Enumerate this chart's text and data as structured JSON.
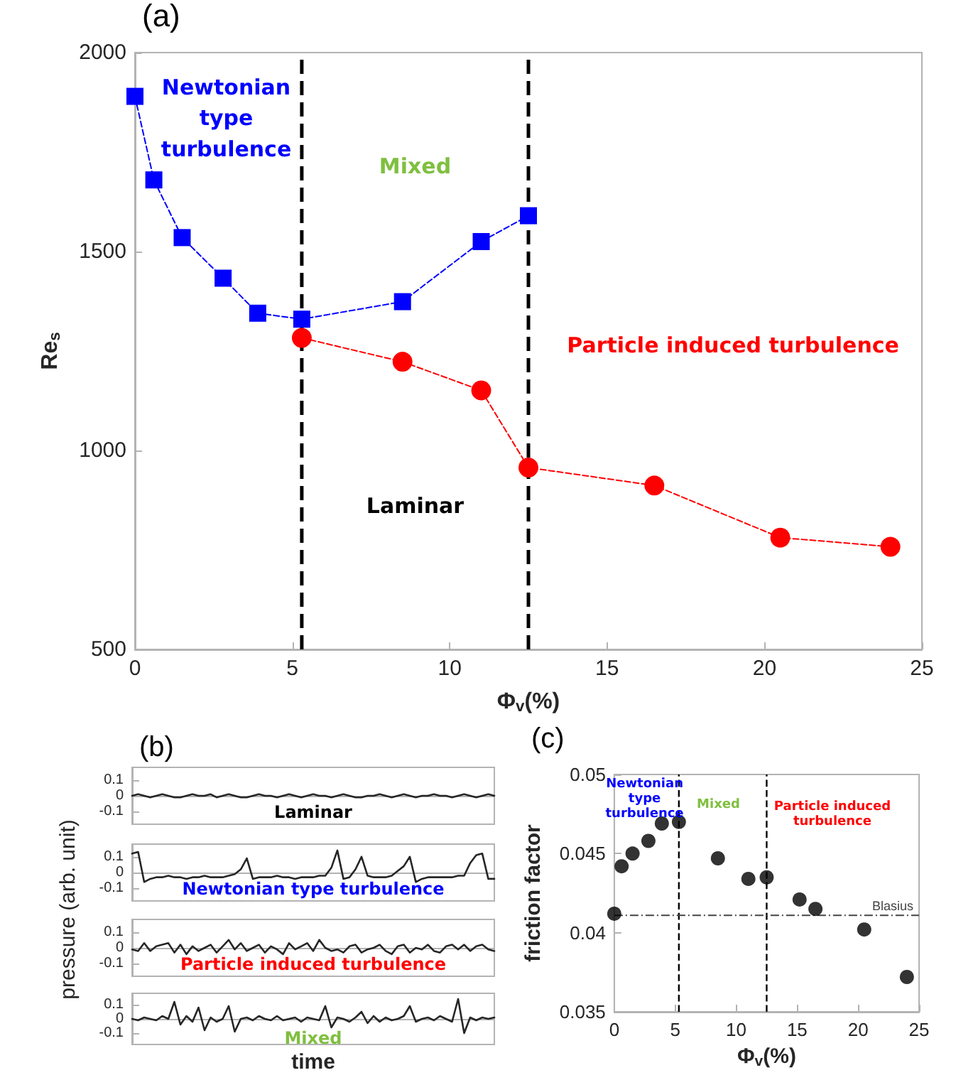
{
  "chart_data": [
    {
      "type": "line",
      "title": "(a)",
      "xlabel": "Φ$_{v}$(%)",
      "ylabel": "Re$_{s}$",
      "xlim": [
        0,
        25
      ],
      "xticks": [
        0,
        5,
        10,
        15,
        20,
        25
      ],
      "ylim": [
        500,
        2000
      ],
      "yticks": [
        500,
        1000,
        1500,
        2000
      ],
      "line_style": "dashed",
      "series": [
        {
          "color": "#0000ff",
          "marker": "square",
          "x": [
            0,
            0.6,
            1.5,
            2.8,
            3.9,
            5.3,
            8.5,
            11,
            12.5
          ],
          "values": [
            1890,
            1680,
            1535,
            1433,
            1345,
            1330,
            1374,
            1525,
            1590
          ]
        },
        {
          "color": "#ff0000",
          "marker": "circle",
          "x": [
            5.3,
            8.5,
            11,
            12.5,
            16.5,
            20.5,
            24
          ],
          "values": [
            1283,
            1223,
            1151,
            957,
            912,
            781,
            758
          ]
        }
      ],
      "ref_lines": [
        {
          "axis": "x",
          "value": 5.3,
          "color": "#000000",
          "line_style": "dashed"
        },
        {
          "axis": "x",
          "value": 12.5,
          "color": "#000000",
          "line_style": "dashed"
        }
      ],
      "annotations": [
        "Newtonian\ntype\nturbulence",
        "Mixed",
        "Particle induced turbulence",
        "Laminar"
      ]
    },
    {
      "type": "line",
      "title": "(b)",
      "ylabel": "pressure (arb. unit)",
      "color": "#262626",
      "tick_labels": "y",
      "ylim": [
        -0.18,
        0.18
      ],
      "yticks": [
        -0.1,
        0,
        0.1
      ],
      "categories": [
        null,
        null,
        null,
        null,
        null,
        null,
        null,
        null,
        null,
        null,
        null,
        null,
        null,
        null,
        null,
        null,
        null,
        null,
        null,
        null,
        null,
        null,
        null,
        null,
        null,
        null,
        null,
        null,
        null,
        null,
        null,
        null,
        null,
        null,
        null,
        null,
        null,
        null,
        null,
        null,
        null,
        null,
        null,
        null,
        null,
        null,
        null,
        null,
        null,
        null,
        null,
        null,
        null,
        null,
        null,
        null,
        null,
        null,
        null,
        null,
        null
      ],
      "values": [
        0,
        0.01,
        0,
        -0.01,
        0,
        0.01,
        0,
        -0.01,
        -0.01,
        0,
        0.01,
        0,
        0,
        0.01,
        -0.01,
        0,
        0.01,
        0,
        -0.01,
        -0.01,
        0,
        0.01,
        0,
        0,
        -0.01,
        0,
        0.01,
        0,
        -0.01,
        0,
        0.01,
        0,
        0,
        -0.01,
        0,
        0.01,
        0,
        -0.01,
        -0.01,
        0,
        0,
        0.01,
        0,
        -0.01,
        0,
        0.01,
        0,
        -0.01,
        0,
        0,
        0.01,
        0,
        0,
        -0.01,
        0,
        0.01,
        0,
        -0.01,
        0,
        0.01,
        0
      ],
      "annotations": [
        "Laminar"
      ]
    },
    {
      "type": "line",
      "color": "#262626",
      "tick_labels": "y",
      "ylim": [
        -0.18,
        0.18
      ],
      "yticks": [
        -0.1,
        0,
        0.1
      ],
      "categories": [
        null,
        null,
        null,
        null,
        null,
        null,
        null,
        null,
        null,
        null,
        null,
        null,
        null,
        null,
        null,
        null,
        null,
        null,
        null,
        null,
        null,
        null,
        null,
        null,
        null,
        null,
        null,
        null,
        null,
        null,
        null,
        null,
        null,
        null,
        null,
        null,
        null,
        null,
        null,
        null,
        null,
        null,
        null,
        null,
        null,
        null,
        null,
        null,
        null,
        null,
        null,
        null,
        null,
        null,
        null,
        null,
        null,
        null,
        null,
        null,
        null
      ],
      "values": [
        0.12,
        0.13,
        -0.06,
        -0.04,
        -0.03,
        -0.03,
        -0.02,
        -0.03,
        -0.03,
        -0.04,
        -0.03,
        -0.03,
        -0.02,
        -0.03,
        -0.03,
        -0.03,
        -0.02,
        -0.01,
        0.02,
        0.09,
        -0.04,
        -0.03,
        -0.03,
        -0.03,
        -0.02,
        -0.03,
        -0.03,
        -0.04,
        -0.03,
        -0.03,
        -0.03,
        -0.02,
        -0.02,
        0.03,
        0.14,
        -0.04,
        -0.03,
        0.02,
        0.1,
        -0.02,
        -0.03,
        -0.03,
        -0.03,
        -0.02,
        0.01,
        0.04,
        0.1,
        -0.06,
        -0.04,
        -0.03,
        -0.03,
        -0.03,
        -0.03,
        -0.03,
        -0.02,
        -0.02,
        0.06,
        0.11,
        0.12,
        -0.04,
        -0.04
      ],
      "annotations": [
        "Newtonian type turbulence"
      ]
    },
    {
      "type": "line",
      "color": "#262626",
      "tick_labels": "y",
      "ylim": [
        -0.18,
        0.18
      ],
      "yticks": [
        -0.1,
        0,
        0.1
      ],
      "categories": [
        null,
        null,
        null,
        null,
        null,
        null,
        null,
        null,
        null,
        null,
        null,
        null,
        null,
        null,
        null,
        null,
        null,
        null,
        null,
        null,
        null,
        null,
        null,
        null,
        null,
        null,
        null,
        null,
        null,
        null,
        null,
        null,
        null,
        null,
        null,
        null,
        null,
        null,
        null,
        null,
        null,
        null,
        null,
        null,
        null,
        null,
        null,
        null,
        null,
        null,
        null,
        null,
        null,
        null,
        null,
        null,
        null,
        null,
        null,
        null,
        null
      ],
      "values": [
        -0.01,
        -0.02,
        0.03,
        -0.02,
        0.01,
        0.02,
        0.03,
        -0.03,
        0.02,
        -0.04,
        0.01,
        -0.02,
        0,
        0.02,
        -0.03,
        0.01,
        0.05,
        -0.01,
        0.03,
        -0.02,
        0,
        0.02,
        -0.03,
        0.01,
        -0.01,
        -0.04,
        0.03,
        -0.01,
        0.01,
        0.03,
        -0.02,
        0.05,
        0,
        -0.02,
        -0.01,
        -0.03,
        0.01,
        0.02,
        -0.03,
        -0.01,
        0,
        0.02,
        -0.02,
        -0.04,
        0.01,
        0.02,
        -0.03,
        0,
        -0.01,
        0.02,
        -0.02,
        -0.03,
        0.01,
        0.02,
        -0.01,
        0.02,
        -0.02,
        0.01,
        0.02,
        -0.01,
        -0.02
      ],
      "annotations": [
        "Particle induced turbulence"
      ]
    },
    {
      "type": "line",
      "xlabel": "time",
      "color": "#262626",
      "tick_labels": "y",
      "ylim": [
        -0.18,
        0.18
      ],
      "yticks": [
        -0.1,
        0,
        0.1
      ],
      "categories": [
        null,
        null,
        null,
        null,
        null,
        null,
        null,
        null,
        null,
        null,
        null,
        null,
        null,
        null,
        null,
        null,
        null,
        null,
        null,
        null,
        null,
        null,
        null,
        null,
        null,
        null,
        null,
        null,
        null,
        null,
        null,
        null,
        null,
        null,
        null,
        null,
        null,
        null,
        null,
        null,
        null,
        null,
        null,
        null,
        null,
        null,
        null,
        null,
        null,
        null,
        null,
        null,
        null,
        null,
        null,
        null,
        null,
        null,
        null,
        null,
        null
      ],
      "values": [
        0,
        -0.01,
        0.01,
        0,
        -0.01,
        0.02,
        0,
        0.12,
        -0.04,
        0.02,
        -0.02,
        0.08,
        -0.08,
        0.01,
        -0.02,
        0,
        0.09,
        -0.09,
        0,
        0.01,
        -0.01,
        0.02,
        0,
        -0.01,
        0.02,
        -0.01,
        0,
        0.01,
        -0.02,
        0.01,
        0,
        -0.01,
        0.09,
        -0.06,
        0.01,
        0,
        -0.02,
        0.01,
        0.05,
        -0.03,
        0.02,
        -0.02,
        0.01,
        -0.01,
        0,
        0.02,
        0.09,
        -0.02,
        0,
        0.01,
        -0.01,
        0.02,
        0,
        -0.02,
        0.14,
        -0.1,
        0.01,
        -0.01,
        0.01,
        0,
        0.01
      ],
      "annotations": [
        "Mixed"
      ]
    },
    {
      "type": "scatter",
      "title": "(c)",
      "xlabel": "Φ$_{v}$(%)",
      "ylabel": "friction factor",
      "color": "#000000",
      "marker": "circle",
      "xlim": [
        0,
        25
      ],
      "xticks": [
        0,
        5,
        10,
        15,
        20,
        25
      ],
      "ylim": [
        0.035,
        0.05
      ],
      "yticks": [
        0.035,
        0.04,
        0.045,
        0.05
      ],
      "x": [
        0,
        0.6,
        1.5,
        2.8,
        3.9,
        5.3,
        8.5,
        11,
        12.5,
        15.2,
        16.5,
        20.5,
        24
      ],
      "values": [
        0.0412,
        0.0442,
        0.045,
        0.0458,
        0.0469,
        0.047,
        0.0447,
        0.0434,
        0.0435,
        0.0421,
        0.0415,
        0.0402,
        0.0372
      ],
      "ref_lines": [
        {
          "axis": "x",
          "value": 5.3,
          "color": "#000000",
          "line_style": "dashed"
        },
        {
          "axis": "x",
          "value": 12.5,
          "color": "#000000",
          "line_style": "dashed"
        },
        {
          "axis": "y",
          "value": 0.0411,
          "label": "Blasius",
          "color": "#444444",
          "line_style": "dotted"
        }
      ],
      "annotations": [
        "Newtonian\ntype\nturbulence",
        "Mixed",
        "Particle induced\nturbulence"
      ]
    }
  ]
}
